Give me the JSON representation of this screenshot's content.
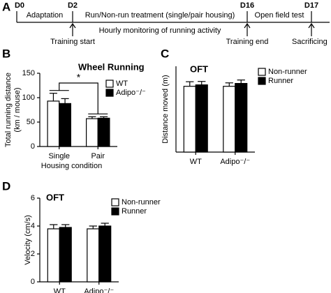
{
  "timeline": {
    "panel": "A",
    "days": [
      "D0",
      "D2",
      "D16",
      "D17"
    ],
    "phases": [
      "Adaptation",
      "Run/Non-run treatment (single/pair housing)",
      "Open field test"
    ],
    "note": "Hourly monitoring of running activity",
    "events": [
      "Training start",
      "Training end",
      "Sacrificing"
    ]
  },
  "chart_data": [
    {
      "panel": "B",
      "type": "bar",
      "title": "Wheel Running",
      "y_label": [
        "Total running distance",
        "(km / mouse)"
      ],
      "x_label": "Housing condition",
      "categories": [
        "Single",
        "Pair"
      ],
      "series": [
        {
          "name": "WT",
          "color": "#ffffff",
          "values": [
            93,
            57
          ],
          "errors": [
            16,
            4
          ]
        },
        {
          "name": "Adipo⁻/⁻",
          "color": "#000000",
          "values": [
            88,
            58
          ],
          "errors": [
            10,
            3
          ]
        }
      ],
      "ylim": [
        0,
        150
      ],
      "yticks": [
        0,
        50,
        100,
        150
      ],
      "annotation": "*"
    },
    {
      "panel": "C",
      "type": "bar",
      "title": "OFT",
      "y_label": [
        "Distance moved (m)"
      ],
      "categories": [
        "WT",
        "Adipo⁻/⁻"
      ],
      "series": [
        {
          "name": "Non-runner",
          "color": "#ffffff",
          "values": [
            23,
            23
          ],
          "errors": [
            1.6,
            1.2
          ]
        },
        {
          "name": "Runner",
          "color": "#000000",
          "values": [
            23.5,
            24
          ],
          "errors": [
            1.2,
            1.2
          ]
        }
      ],
      "ylim": [
        0,
        30
      ]
    },
    {
      "panel": "D",
      "type": "bar",
      "title": "OFT",
      "y_label": [
        "Velocity (cm/s)"
      ],
      "categories": [
        "WT",
        "Adipo⁻/⁻"
      ],
      "series": [
        {
          "name": "Non-runner",
          "color": "#ffffff",
          "values": [
            3.8,
            3.8
          ],
          "errors": [
            0.3,
            0.2
          ]
        },
        {
          "name": "Runner",
          "color": "#000000",
          "values": [
            3.9,
            4.0
          ],
          "errors": [
            0.2,
            0.2
          ]
        }
      ],
      "ylim": [
        0,
        6
      ],
      "yticks": [
        0,
        2,
        4,
        6
      ]
    }
  ]
}
